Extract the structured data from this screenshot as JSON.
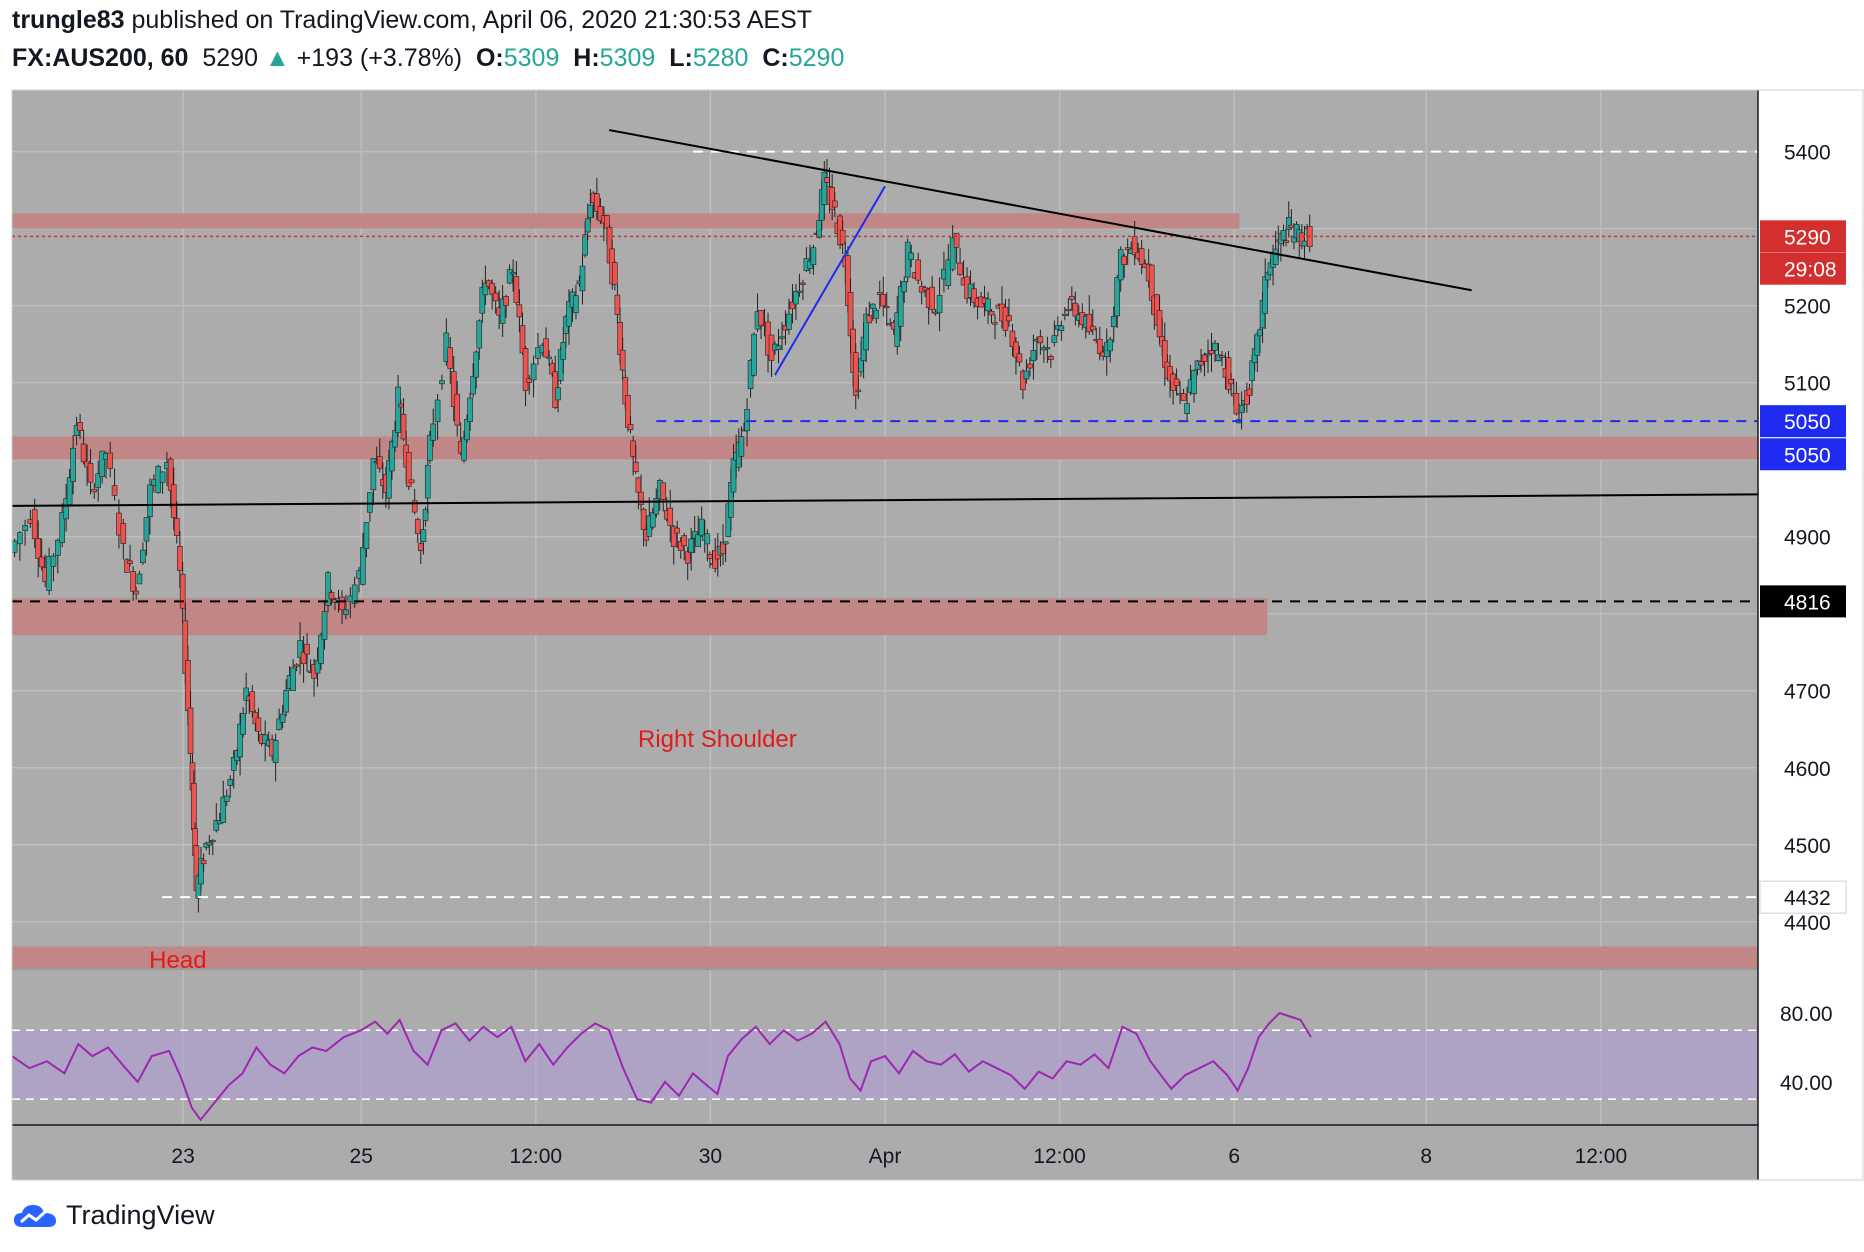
{
  "header": {
    "publisher": "trungle83",
    "published_text": "published on TradingView.com, April 06, 2020 21:30:53 AEST",
    "symbol": "FX:AUS200, 60",
    "last": "5290",
    "change_arrow": "▲",
    "change": "+193 (+3.78%)",
    "ohlc": [
      {
        "label": "O:",
        "value": "5309"
      },
      {
        "label": "H:",
        "value": "5309"
      },
      {
        "label": "L:",
        "value": "5280"
      },
      {
        "label": "C:",
        "value": "5290"
      }
    ]
  },
  "footer": {
    "brand": "TradingView",
    "logo_icon": "tradingview-cloud-icon"
  },
  "colors": {
    "background": "#acacac",
    "up_candle": "#26a69a",
    "down_candle": "#ef5350",
    "zone": "#c47f7f",
    "rsi": "#9c27b0",
    "rsi_band": "#b39ddb",
    "price_tag": "#d32f2f",
    "blue_tag": "#1f2bf0"
  },
  "chart_data": {
    "type": "candlestick",
    "symbol": "FX:AUS200",
    "interval": "60",
    "ylim": [
      4340,
      5480
    ],
    "y_ticks": [
      4400,
      4500,
      4600,
      4700,
      4800,
      4900,
      5000,
      5100,
      5200,
      5300,
      5400
    ],
    "x_tick_labels": [
      {
        "label": "23",
        "t": 0.098
      },
      {
        "label": "25",
        "t": 0.2
      },
      {
        "label": "12:00",
        "t": 0.3
      },
      {
        "label": "30",
        "t": 0.4
      },
      {
        "label": "Apr",
        "t": 0.5
      },
      {
        "label": "12:00",
        "t": 0.6
      },
      {
        "label": "6",
        "t": 0.7
      },
      {
        "label": "8",
        "t": 0.81
      },
      {
        "label": "12:00",
        "t": 0.91
      }
    ],
    "price_path": [
      [
        0.0,
        4880
      ],
      [
        0.012,
        4930
      ],
      [
        0.02,
        4840
      ],
      [
        0.03,
        4920
      ],
      [
        0.038,
        5050
      ],
      [
        0.046,
        4960
      ],
      [
        0.055,
        5010
      ],
      [
        0.065,
        4880
      ],
      [
        0.072,
        4830
      ],
      [
        0.08,
        4960
      ],
      [
        0.09,
        5000
      ],
      [
        0.097,
        4850
      ],
      [
        0.103,
        4620
      ],
      [
        0.106,
        4440
      ],
      [
        0.112,
        4500
      ],
      [
        0.12,
        4540
      ],
      [
        0.128,
        4600
      ],
      [
        0.135,
        4700
      ],
      [
        0.142,
        4640
      ],
      [
        0.15,
        4620
      ],
      [
        0.158,
        4700
      ],
      [
        0.166,
        4760
      ],
      [
        0.174,
        4720
      ],
      [
        0.182,
        4840
      ],
      [
        0.19,
        4800
      ],
      [
        0.2,
        4850
      ],
      [
        0.208,
        5000
      ],
      [
        0.215,
        4960
      ],
      [
        0.222,
        5080
      ],
      [
        0.228,
        4980
      ],
      [
        0.235,
        4880
      ],
      [
        0.24,
        5020
      ],
      [
        0.25,
        5150
      ],
      [
        0.258,
        5000
      ],
      [
        0.265,
        5120
      ],
      [
        0.272,
        5240
      ],
      [
        0.28,
        5180
      ],
      [
        0.288,
        5250
      ],
      [
        0.295,
        5100
      ],
      [
        0.305,
        5160
      ],
      [
        0.312,
        5080
      ],
      [
        0.318,
        5180
      ],
      [
        0.326,
        5230
      ],
      [
        0.332,
        5340
      ],
      [
        0.34,
        5310
      ],
      [
        0.346,
        5220
      ],
      [
        0.352,
        5080
      ],
      [
        0.358,
        4970
      ],
      [
        0.364,
        4900
      ],
      [
        0.372,
        4960
      ],
      [
        0.38,
        4900
      ],
      [
        0.388,
        4880
      ],
      [
        0.396,
        4910
      ],
      [
        0.402,
        4870
      ],
      [
        0.408,
        4880
      ],
      [
        0.414,
        4990
      ],
      [
        0.42,
        5040
      ],
      [
        0.428,
        5200
      ],
      [
        0.436,
        5130
      ],
      [
        0.444,
        5180
      ],
      [
        0.452,
        5230
      ],
      [
        0.46,
        5280
      ],
      [
        0.466,
        5360
      ],
      [
        0.472,
        5320
      ],
      [
        0.478,
        5260
      ],
      [
        0.484,
        5080
      ],
      [
        0.49,
        5180
      ],
      [
        0.498,
        5210
      ],
      [
        0.506,
        5160
      ],
      [
        0.514,
        5270
      ],
      [
        0.522,
        5220
      ],
      [
        0.53,
        5200
      ],
      [
        0.54,
        5280
      ],
      [
        0.548,
        5220
      ],
      [
        0.556,
        5200
      ],
      [
        0.564,
        5190
      ],
      [
        0.572,
        5180
      ],
      [
        0.58,
        5100
      ],
      [
        0.588,
        5160
      ],
      [
        0.596,
        5140
      ],
      [
        0.604,
        5200
      ],
      [
        0.612,
        5190
      ],
      [
        0.62,
        5160
      ],
      [
        0.628,
        5140
      ],
      [
        0.636,
        5260
      ],
      [
        0.644,
        5280
      ],
      [
        0.652,
        5240
      ],
      [
        0.658,
        5160
      ],
      [
        0.664,
        5100
      ],
      [
        0.672,
        5070
      ],
      [
        0.68,
        5120
      ],
      [
        0.688,
        5150
      ],
      [
        0.696,
        5120
      ],
      [
        0.702,
        5060
      ],
      [
        0.708,
        5080
      ],
      [
        0.714,
        5150
      ],
      [
        0.72,
        5250
      ],
      [
        0.726,
        5280
      ],
      [
        0.732,
        5300
      ],
      [
        0.738,
        5290
      ],
      [
        0.744,
        5290
      ]
    ],
    "horizontal_levels": [
      {
        "price": 5400,
        "label": "5400",
        "style": "dashed",
        "color": "#ffffff"
      },
      {
        "price": 5050,
        "label": "5050",
        "style": "dashed",
        "color": "#1f2bf0"
      },
      {
        "price": 4816,
        "label": "4816",
        "style": "dashed",
        "color": "#000000"
      },
      {
        "price": 4432,
        "label": "4432",
        "style": "dashed",
        "color": "#ffffff"
      }
    ],
    "zones": [
      {
        "from": 5300,
        "to": 5320,
        "t_start": 0.0,
        "t_end": 0.703
      },
      {
        "from": 5000,
        "to": 5030,
        "t_start": 0.0,
        "t_end": 1.0
      },
      {
        "from": 4772,
        "to": 4820,
        "t_start": 0.0,
        "t_end": 0.719
      },
      {
        "from": 4340,
        "to": 4368,
        "t_start": 0.0,
        "t_end": 1.0
      }
    ],
    "trendlines": [
      {
        "p1": [
          0.342,
          5428
        ],
        "p2": [
          0.836,
          5220
        ],
        "color": "#000000"
      },
      {
        "p1": [
          0.0,
          4940
        ],
        "p2": [
          1.0,
          4955
        ],
        "color": "#000000"
      },
      {
        "p1": [
          0.437,
          5110
        ],
        "p2": [
          0.5,
          5355
        ],
        "color": "#1f2bf0"
      }
    ],
    "price_tags": [
      {
        "label": "5400",
        "price": 5400,
        "style": "plain"
      },
      {
        "label": "5290",
        "price": 5290,
        "style": "red"
      },
      {
        "label": "29:08",
        "price": 5248,
        "style": "red"
      },
      {
        "label": "5200",
        "price": 5200,
        "style": "plain"
      },
      {
        "label": "5100",
        "price": 5100,
        "style": "plain"
      },
      {
        "label": "5050",
        "price": 5050,
        "style": "blue"
      },
      {
        "label": "5050",
        "price": 5007,
        "style": "blue"
      },
      {
        "label": "4900",
        "price": 4900,
        "style": "plain"
      },
      {
        "label": "4816",
        "price": 4816,
        "style": "black"
      },
      {
        "label": "4700",
        "price": 4700,
        "style": "plain"
      },
      {
        "label": "4600",
        "price": 4600,
        "style": "plain"
      },
      {
        "label": "4500",
        "price": 4500,
        "style": "plain"
      },
      {
        "label": "4432",
        "price": 4432,
        "style": "white"
      },
      {
        "label": "4400",
        "price": 4400,
        "style": "plain"
      }
    ],
    "annotations": [
      {
        "text": "Right Shoulder",
        "t": 0.404,
        "price": 4627,
        "color": "#e11b1b"
      },
      {
        "text": "Head",
        "t": 0.095,
        "price": 4340,
        "color": "#e11b1b"
      }
    ],
    "rsi": {
      "ylim": [
        15,
        105
      ],
      "ticks": [
        {
          "label": "80.00",
          "value": 80
        },
        {
          "label": "40.00",
          "value": 40
        }
      ],
      "band": [
        30,
        70
      ],
      "path": [
        [
          0.0,
          55
        ],
        [
          0.01,
          48
        ],
        [
          0.02,
          52
        ],
        [
          0.03,
          45
        ],
        [
          0.038,
          62
        ],
        [
          0.046,
          55
        ],
        [
          0.055,
          60
        ],
        [
          0.065,
          48
        ],
        [
          0.072,
          40
        ],
        [
          0.08,
          55
        ],
        [
          0.09,
          58
        ],
        [
          0.097,
          42
        ],
        [
          0.103,
          25
        ],
        [
          0.108,
          18
        ],
        [
          0.116,
          28
        ],
        [
          0.124,
          38
        ],
        [
          0.132,
          45
        ],
        [
          0.14,
          60
        ],
        [
          0.148,
          50
        ],
        [
          0.156,
          45
        ],
        [
          0.164,
          55
        ],
        [
          0.172,
          60
        ],
        [
          0.18,
          58
        ],
        [
          0.19,
          66
        ],
        [
          0.2,
          70
        ],
        [
          0.208,
          75
        ],
        [
          0.215,
          68
        ],
        [
          0.222,
          76
        ],
        [
          0.23,
          58
        ],
        [
          0.238,
          50
        ],
        [
          0.246,
          70
        ],
        [
          0.254,
          74
        ],
        [
          0.262,
          64
        ],
        [
          0.27,
          72
        ],
        [
          0.278,
          66
        ],
        [
          0.286,
          72
        ],
        [
          0.294,
          52
        ],
        [
          0.302,
          62
        ],
        [
          0.31,
          50
        ],
        [
          0.318,
          60
        ],
        [
          0.326,
          68
        ],
        [
          0.334,
          74
        ],
        [
          0.342,
          70
        ],
        [
          0.35,
          48
        ],
        [
          0.358,
          30
        ],
        [
          0.366,
          28
        ],
        [
          0.374,
          40
        ],
        [
          0.382,
          32
        ],
        [
          0.39,
          45
        ],
        [
          0.398,
          38
        ],
        [
          0.404,
          33
        ],
        [
          0.41,
          55
        ],
        [
          0.418,
          65
        ],
        [
          0.426,
          72
        ],
        [
          0.434,
          62
        ],
        [
          0.442,
          70
        ],
        [
          0.45,
          64
        ],
        [
          0.458,
          68
        ],
        [
          0.466,
          75
        ],
        [
          0.474,
          62
        ],
        [
          0.48,
          42
        ],
        [
          0.486,
          35
        ],
        [
          0.492,
          52
        ],
        [
          0.5,
          55
        ],
        [
          0.508,
          45
        ],
        [
          0.516,
          58
        ],
        [
          0.524,
          52
        ],
        [
          0.532,
          50
        ],
        [
          0.54,
          56
        ],
        [
          0.548,
          46
        ],
        [
          0.556,
          52
        ],
        [
          0.564,
          48
        ],
        [
          0.572,
          44
        ],
        [
          0.58,
          36
        ],
        [
          0.588,
          46
        ],
        [
          0.596,
          42
        ],
        [
          0.604,
          52
        ],
        [
          0.612,
          50
        ],
        [
          0.62,
          56
        ],
        [
          0.628,
          48
        ],
        [
          0.636,
          72
        ],
        [
          0.644,
          68
        ],
        [
          0.652,
          52
        ],
        [
          0.658,
          44
        ],
        [
          0.664,
          36
        ],
        [
          0.672,
          44
        ],
        [
          0.68,
          48
        ],
        [
          0.688,
          52
        ],
        [
          0.696,
          44
        ],
        [
          0.702,
          35
        ],
        [
          0.708,
          48
        ],
        [
          0.714,
          66
        ],
        [
          0.72,
          74
        ],
        [
          0.726,
          80
        ],
        [
          0.732,
          78
        ],
        [
          0.738,
          76
        ],
        [
          0.744,
          66
        ]
      ]
    }
  }
}
